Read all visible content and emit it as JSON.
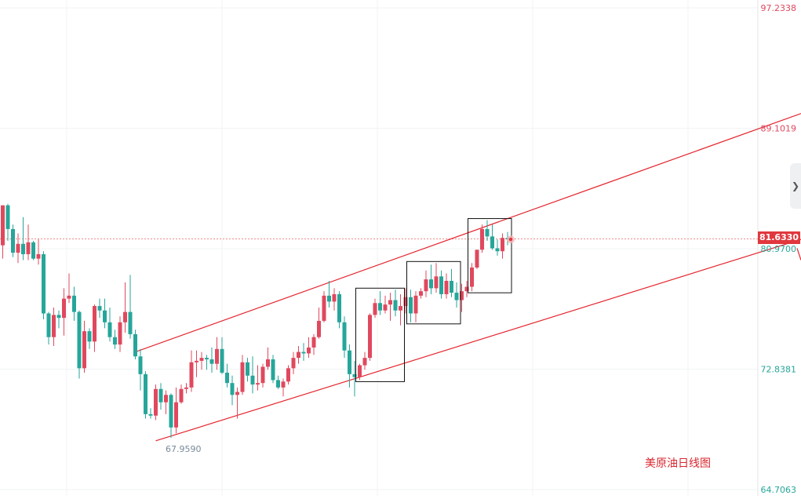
{
  "chart_data": {
    "type": "candlestick",
    "title": "美原油日线图",
    "price_axis_labels": [
      "97.2338",
      "89.1019",
      "80.9700",
      "72.8381",
      "64.7063"
    ],
    "current_price": "81.6330",
    "low_annotation": "67.9590",
    "ylim": [
      64.7063,
      97.2338
    ],
    "grid": true,
    "colors": {
      "up": "#e0485e",
      "down": "#26a69a",
      "trendline": "#e3262e",
      "current_line": "#f08a8a"
    },
    "candles": [
      [
        81.2,
        83.9,
        80.3,
        83.9
      ],
      [
        83.9,
        84.0,
        81.5,
        82.3
      ],
      [
        82.3,
        82.6,
        80.4,
        80.7
      ],
      [
        80.7,
        82.0,
        80.0,
        81.3
      ],
      [
        81.3,
        83.1,
        80.2,
        80.6
      ],
      [
        80.6,
        82.6,
        80.2,
        81.4
      ],
      [
        81.4,
        81.5,
        80.2,
        80.3
      ],
      [
        80.3,
        81.6,
        79.9,
        80.6
      ],
      [
        80.6,
        80.8,
        76.2,
        76.6
      ],
      [
        76.6,
        76.7,
        74.5,
        75.0
      ],
      [
        75.0,
        77.0,
        74.4,
        76.5
      ],
      [
        76.5,
        76.8,
        75.6,
        76.3
      ],
      [
        76.3,
        78.3,
        75.1,
        77.6
      ],
      [
        77.6,
        79.3,
        77.3,
        77.8
      ],
      [
        77.8,
        78.4,
        76.1,
        76.7
      ],
      [
        76.7,
        76.8,
        72.2,
        72.9
      ],
      [
        72.9,
        76.1,
        72.6,
        75.4
      ],
      [
        75.4,
        75.6,
        74.2,
        74.7
      ],
      [
        74.7,
        77.2,
        74.0,
        77.1
      ],
      [
        77.1,
        77.6,
        76.3,
        76.8
      ],
      [
        76.8,
        77.6,
        75.6,
        76.0
      ],
      [
        76.0,
        77.0,
        74.7,
        75.0
      ],
      [
        75.0,
        75.5,
        74.2,
        74.5
      ],
      [
        74.5,
        76.4,
        74.0,
        76.0
      ],
      [
        76.0,
        78.7,
        75.3,
        76.7
      ],
      [
        76.7,
        79.2,
        74.9,
        75.2
      ],
      [
        75.2,
        75.5,
        73.5,
        73.7
      ],
      [
        73.7,
        74.2,
        71.4,
        72.5
      ],
      [
        72.5,
        72.7,
        69.5,
        69.8
      ],
      [
        69.8,
        70.2,
        69.5,
        69.7
      ],
      [
        69.7,
        71.8,
        69.4,
        71.5
      ],
      [
        71.5,
        71.9,
        70.1,
        70.6
      ],
      [
        70.6,
        71.4,
        69.8,
        71.1
      ],
      [
        71.1,
        71.2,
        68.2,
        68.9
      ],
      [
        68.9,
        71.6,
        68.5,
        70.6
      ],
      [
        70.6,
        71.8,
        70.5,
        71.5
      ],
      [
        71.5,
        71.9,
        71.2,
        71.6
      ],
      [
        71.6,
        74.1,
        71.3,
        73.3
      ],
      [
        73.3,
        74.1,
        72.3,
        73.4
      ],
      [
        73.4,
        74.0,
        72.8,
        73.6
      ],
      [
        73.6,
        73.8,
        72.8,
        73.5
      ],
      [
        73.5,
        74.3,
        72.6,
        73.2
      ],
      [
        73.2,
        75.0,
        72.8,
        74.2
      ],
      [
        74.2,
        75.0,
        72.5,
        72.6
      ],
      [
        72.6,
        73.2,
        71.6,
        71.9
      ],
      [
        71.9,
        72.4,
        70.4,
        71.1
      ],
      [
        71.1,
        71.6,
        69.5,
        71.3
      ],
      [
        71.3,
        73.8,
        71.1,
        73.3
      ],
      [
        73.3,
        73.6,
        72.0,
        72.4
      ],
      [
        72.4,
        73.7,
        71.2,
        71.8
      ],
      [
        71.8,
        73.1,
        71.4,
        71.9
      ],
      [
        71.9,
        73.2,
        71.6,
        73.0
      ],
      [
        73.0,
        74.3,
        72.8,
        73.5
      ],
      [
        73.5,
        73.8,
        71.9,
        72.1
      ],
      [
        72.1,
        72.4,
        71.5,
        71.6
      ],
      [
        71.6,
        72.2,
        71.0,
        72.0
      ],
      [
        72.0,
        73.1,
        71.8,
        72.9
      ],
      [
        72.9,
        74.0,
        72.5,
        73.6
      ],
      [
        73.6,
        74.4,
        73.2,
        74.0
      ],
      [
        74.0,
        74.6,
        73.4,
        73.9
      ],
      [
        73.9,
        75.0,
        73.6,
        74.3
      ],
      [
        74.3,
        75.2,
        73.8,
        75.0
      ],
      [
        75.0,
        77.0,
        74.9,
        76.1
      ],
      [
        76.1,
        78.1,
        76.0,
        77.8
      ],
      [
        77.8,
        78.8,
        77.0,
        77.4
      ],
      [
        77.4,
        78.3,
        76.8,
        77.9
      ],
      [
        77.9,
        78.1,
        75.6,
        76.0
      ],
      [
        76.0,
        76.4,
        73.6,
        74.1
      ],
      [
        74.1,
        74.5,
        71.6,
        72.5
      ],
      [
        72.5,
        73.4,
        71.0,
        72.3
      ],
      [
        72.3,
        73.2,
        72.1,
        73.1
      ],
      [
        73.1,
        74.0,
        72.8,
        73.6
      ],
      [
        73.6,
        76.6,
        73.4,
        76.5
      ],
      [
        76.5,
        77.6,
        76.3,
        77.3
      ],
      [
        77.3,
        78.1,
        76.5,
        76.8
      ],
      [
        76.8,
        77.8,
        76.6,
        77.2
      ],
      [
        77.2,
        78.0,
        76.1,
        77.5
      ],
      [
        77.5,
        78.2,
        76.4,
        76.8
      ],
      [
        76.8,
        77.9,
        75.8,
        77.1
      ],
      [
        77.1,
        78.3,
        76.6,
        77.7
      ],
      [
        77.7,
        78.2,
        76.0,
        76.6
      ],
      [
        76.6,
        78.1,
        76.0,
        77.8
      ],
      [
        77.8,
        78.3,
        77.6,
        78.1
      ],
      [
        78.1,
        79.5,
        77.7,
        78.9
      ],
      [
        78.9,
        79.9,
        77.9,
        78.3
      ],
      [
        78.3,
        80.0,
        78.0,
        79.1
      ],
      [
        79.1,
        79.5,
        77.6,
        77.9
      ],
      [
        77.9,
        79.3,
        77.6,
        78.8
      ],
      [
        78.8,
        79.6,
        77.7,
        78.0
      ],
      [
        78.0,
        78.7,
        77.0,
        77.5
      ],
      [
        77.5,
        78.6,
        76.7,
        78.1
      ],
      [
        78.1,
        78.8,
        77.7,
        78.4
      ],
      [
        78.4,
        80.0,
        78.1,
        79.7
      ],
      [
        79.7,
        80.9,
        79.6,
        80.9
      ],
      [
        80.9,
        82.6,
        80.7,
        82.3
      ],
      [
        82.3,
        82.9,
        81.5,
        81.8
      ],
      [
        81.8,
        82.6,
        80.9,
        81.0
      ],
      [
        81.0,
        81.6,
        80.5,
        80.8
      ],
      [
        80.8,
        82.0,
        80.3,
        81.7
      ],
      [
        81.7,
        82.1,
        81.2,
        81.6
      ]
    ]
  }
}
